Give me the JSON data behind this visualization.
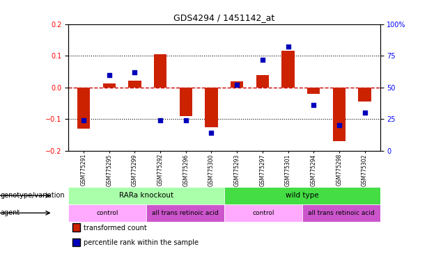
{
  "title": "GDS4294 / 1451142_at",
  "samples": [
    "GSM775291",
    "GSM775295",
    "GSM775299",
    "GSM775292",
    "GSM775296",
    "GSM775300",
    "GSM775293",
    "GSM775297",
    "GSM775301",
    "GSM775294",
    "GSM775298",
    "GSM775302"
  ],
  "red_bars": [
    -0.13,
    0.012,
    0.022,
    0.105,
    -0.09,
    -0.125,
    0.02,
    0.04,
    0.115,
    -0.02,
    -0.17,
    -0.045
  ],
  "blue_dots": [
    24,
    60,
    62,
    24,
    24,
    14,
    52,
    72,
    82,
    36,
    20,
    30
  ],
  "ylim_left": [
    -0.2,
    0.2
  ],
  "ylim_right": [
    0,
    100
  ],
  "yticks_left": [
    -0.2,
    -0.1,
    0.0,
    0.1,
    0.2
  ],
  "yticks_right": [
    0,
    25,
    50,
    75,
    100
  ],
  "ytick_labels_right": [
    "0",
    "25",
    "50",
    "75",
    "100%"
  ],
  "hlines_dotted": [
    -0.1,
    0.1
  ],
  "hline_zero_color": "#CC0000",
  "genotype_groups": [
    {
      "label": "RARa knockout",
      "start": 0,
      "end": 6,
      "color": "#AAFFAA"
    },
    {
      "label": "wild type",
      "start": 6,
      "end": 12,
      "color": "#44DD44"
    }
  ],
  "agent_groups": [
    {
      "label": "control",
      "start": 0,
      "end": 3,
      "color": "#FFAAFF"
    },
    {
      "label": "all trans retinoic acid",
      "start": 3,
      "end": 6,
      "color": "#CC55CC"
    },
    {
      "label": "control",
      "start": 6,
      "end": 9,
      "color": "#FFAAFF"
    },
    {
      "label": "all trans retinoic acid",
      "start": 9,
      "end": 12,
      "color": "#CC55CC"
    }
  ],
  "bar_color": "#CC2200",
  "dot_color": "#0000BB",
  "bar_width": 0.5,
  "background_color": "white",
  "legend_items": [
    {
      "label": "transformed count",
      "color": "#CC2200"
    },
    {
      "label": "percentile rank within the sample",
      "color": "#0000BB"
    }
  ],
  "genotype_label": "genotype/variation",
  "agent_label": "agent"
}
